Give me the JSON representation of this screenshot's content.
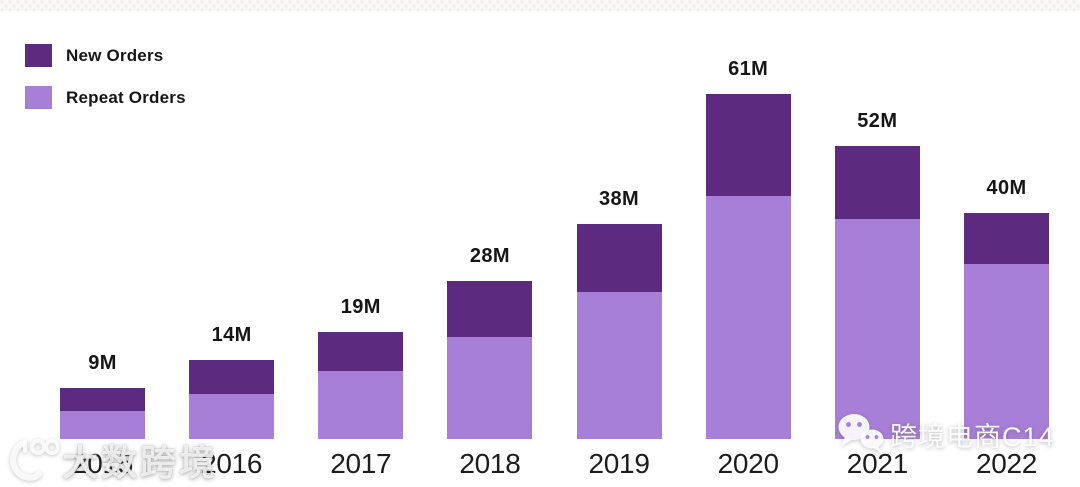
{
  "legend": {
    "items": [
      {
        "label": "New Orders",
        "color": "#5c2a7e"
      },
      {
        "label": "Repeat Orders",
        "color": "#a77fd6"
      }
    ]
  },
  "chart_data": {
    "type": "bar",
    "stacked": true,
    "title": "",
    "categories": [
      "2015",
      "2016",
      "2017",
      "2018",
      "2019",
      "2020",
      "2021",
      "2022"
    ],
    "series": [
      {
        "name": "New Orders",
        "color": "#5c2a7e",
        "values": [
          4,
          6,
          7,
          10,
          12,
          18,
          13,
          9
        ]
      },
      {
        "name": "Repeat Orders",
        "color": "#a77fd6",
        "values": [
          5,
          8,
          12,
          18,
          26,
          43,
          39,
          31
        ]
      }
    ],
    "totals": [
      9,
      14,
      19,
      28,
      38,
      61,
      52,
      40
    ],
    "total_labels": [
      "9M",
      "14M",
      "19M",
      "28M",
      "38M",
      "61M",
      "52M",
      "40M"
    ],
    "unit": "M",
    "value_axis_visible": false,
    "gridlines": false,
    "legend_position": "top-left",
    "label_color": "#161616"
  },
  "watermarks": {
    "bottom_left": {
      "icon": "dashu-kuajing-logo-icon",
      "text": "大数跨境"
    },
    "bottom_right": {
      "icon": "wechat-icon",
      "text": "跨境电商C14"
    }
  }
}
